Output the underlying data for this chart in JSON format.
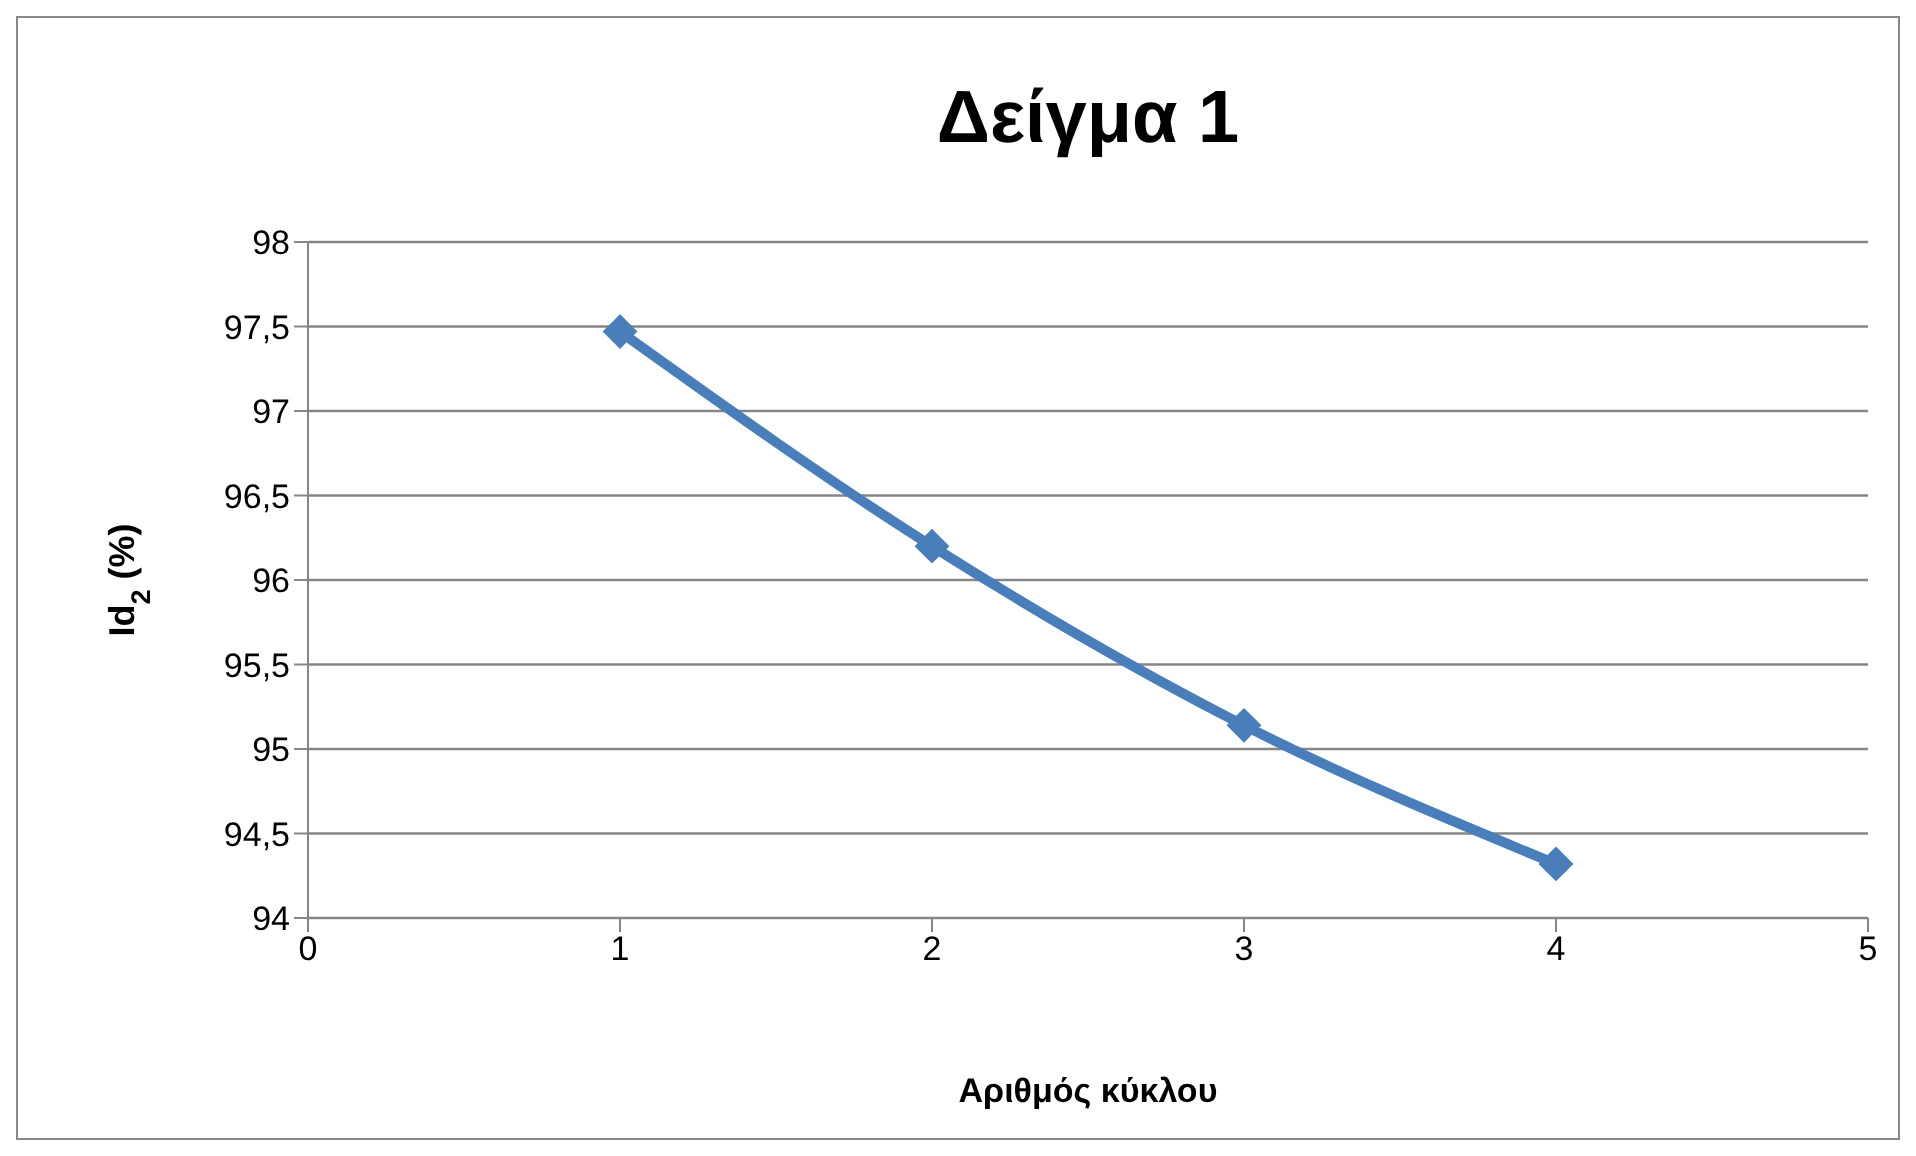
{
  "chart_data": {
    "type": "line",
    "title": "Δείγμα 1",
    "xlabel": "Αριθμός κύκλου",
    "ylabel": "Id$_{2}$ (%)",
    "x": [
      1,
      2,
      3,
      4
    ],
    "series": [
      {
        "color": "#4a7ebb",
        "values": [
          97.47,
          96.2,
          95.14,
          94.32
        ]
      }
    ],
    "xlim": [
      0,
      5
    ],
    "xticks": [
      0,
      1,
      2,
      3,
      4,
      5
    ],
    "ylim": [
      94,
      98
    ],
    "yticks": [
      94,
      {
        "value": 94.5,
        "label": "94,5"
      },
      95,
      {
        "value": 95.5,
        "label": "95,5"
      },
      96,
      {
        "value": 96.5,
        "label": "96,5"
      },
      97,
      {
        "value": 97.5,
        "label": "97,5"
      },
      98
    ],
    "grid": "y",
    "marker": "diamond",
    "line_style": "solid",
    "legend": false
  }
}
